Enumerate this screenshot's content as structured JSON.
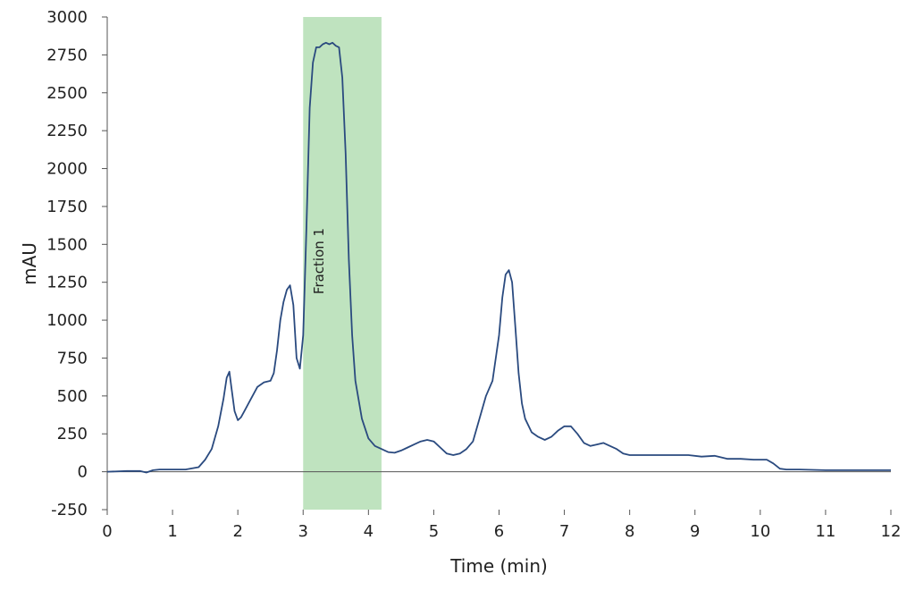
{
  "chart_data": {
    "type": "line",
    "title": "",
    "xlabel": "Time (min)",
    "ylabel": "mAU",
    "xlim": [
      0,
      12
    ],
    "ylim": [
      -250,
      3000
    ],
    "xticks": [
      0,
      1,
      2,
      3,
      4,
      5,
      6,
      7,
      8,
      9,
      10,
      11,
      12
    ],
    "yticks": [
      -250,
      0,
      250,
      500,
      750,
      1000,
      1250,
      1500,
      1750,
      2000,
      2250,
      2500,
      2750,
      3000
    ],
    "grid": false,
    "legend": "none",
    "line_color": "#2a4a7f",
    "highlight": {
      "label": "Fraction 1",
      "x_start": 3.0,
      "x_end": 4.2,
      "color": "#bfe3bf"
    },
    "series": [
      {
        "x": [
          0,
          0.3,
          0.5,
          0.6,
          0.7,
          0.8,
          1.0,
          1.2,
          1.4,
          1.5,
          1.6,
          1.7,
          1.78,
          1.83,
          1.87,
          1.9,
          1.95,
          2.0,
          2.05,
          2.1,
          2.2,
          2.3,
          2.4,
          2.5,
          2.55,
          2.6,
          2.65,
          2.7,
          2.75,
          2.8,
          2.85,
          2.9,
          2.95,
          3.0,
          3.05,
          3.1,
          3.15,
          3.2,
          3.25,
          3.3,
          3.35,
          3.4,
          3.45,
          3.5,
          3.55,
          3.6,
          3.65,
          3.7,
          3.75,
          3.8,
          3.9,
          4.0,
          4.1,
          4.2,
          4.3,
          4.4,
          4.5,
          4.6,
          4.7,
          4.8,
          4.9,
          5.0,
          5.1,
          5.2,
          5.3,
          5.4,
          5.5,
          5.6,
          5.7,
          5.8,
          5.9,
          6.0,
          6.05,
          6.1,
          6.15,
          6.2,
          6.25,
          6.3,
          6.35,
          6.4,
          6.5,
          6.6,
          6.7,
          6.8,
          6.9,
          7.0,
          7.1,
          7.2,
          7.3,
          7.4,
          7.5,
          7.6,
          7.7,
          7.8,
          7.9,
          8.0,
          8.1,
          8.3,
          8.5,
          8.7,
          8.9,
          9.1,
          9.3,
          9.5,
          9.7,
          9.9,
          10.1,
          10.2,
          10.3,
          10.4,
          10.6,
          11.0,
          11.5,
          12.0
        ],
        "y": [
          0,
          5,
          5,
          -5,
          10,
          15,
          15,
          15,
          30,
          80,
          150,
          300,
          480,
          620,
          660,
          560,
          400,
          340,
          360,
          400,
          480,
          560,
          590,
          600,
          650,
          800,
          1000,
          1120,
          1200,
          1230,
          1100,
          750,
          680,
          900,
          1600,
          2400,
          2700,
          2800,
          2800,
          2820,
          2830,
          2820,
          2830,
          2810,
          2800,
          2600,
          2100,
          1400,
          900,
          600,
          350,
          220,
          170,
          150,
          130,
          125,
          140,
          160,
          180,
          200,
          210,
          200,
          160,
          120,
          110,
          120,
          150,
          200,
          350,
          500,
          600,
          900,
          1150,
          1300,
          1330,
          1250,
          950,
          650,
          450,
          350,
          260,
          230,
          210,
          230,
          270,
          300,
          300,
          250,
          190,
          170,
          180,
          190,
          170,
          150,
          120,
          110,
          110,
          110,
          110,
          110,
          110,
          100,
          105,
          85,
          85,
          80,
          80,
          55,
          20,
          15,
          15,
          10,
          10,
          10
        ]
      }
    ]
  }
}
